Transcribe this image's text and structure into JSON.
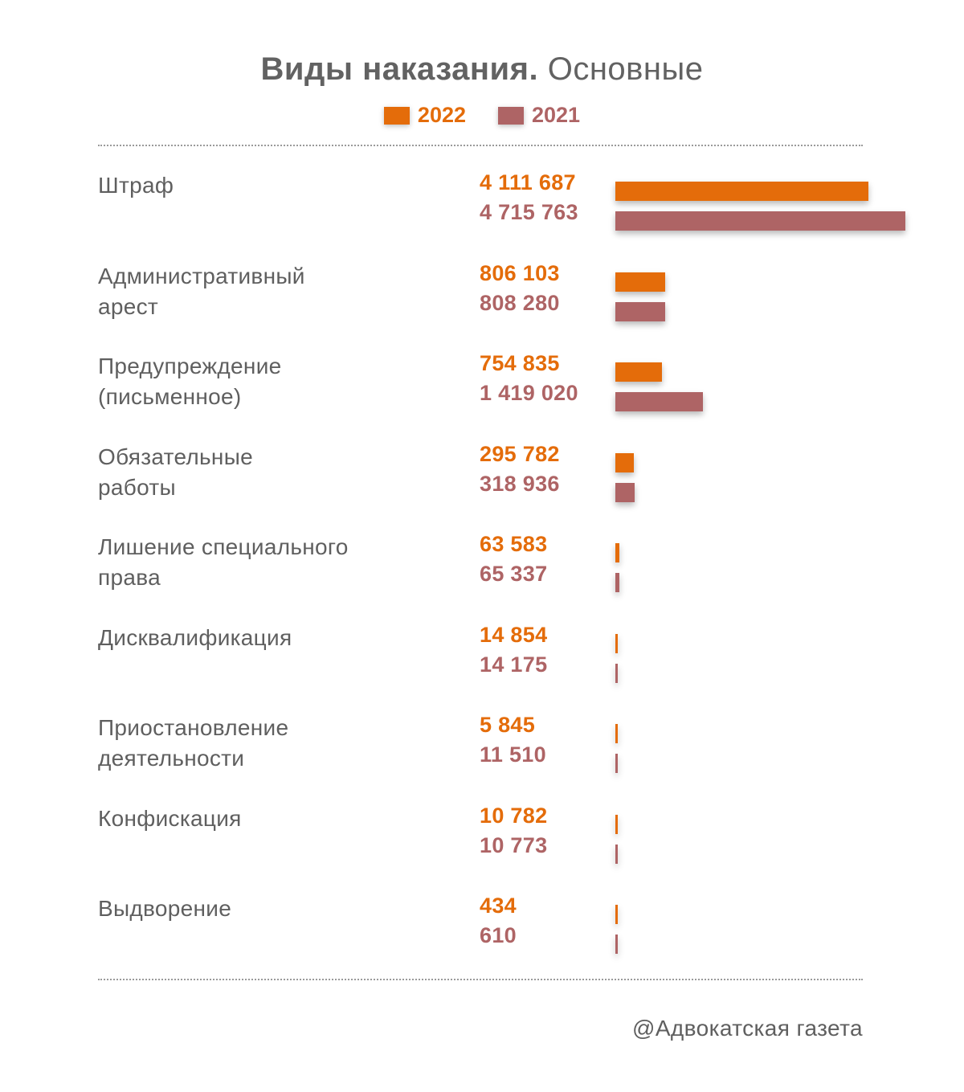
{
  "title": {
    "bold": "Виды наказания.",
    "light": "Основные"
  },
  "colors": {
    "y2022": "#e46c0a",
    "y2021": "#ae6465"
  },
  "legend": [
    {
      "label": "2022",
      "color": "#e46c0a"
    },
    {
      "label": "2021",
      "color": "#ae6465"
    }
  ],
  "source": "@Адвокатская газета",
  "chart_data": {
    "type": "bar",
    "orientation": "horizontal",
    "title": "Виды наказания. Основные",
    "categories": [
      "Штраф",
      "Административный арест",
      "Предупреждение (письменное)",
      "Обязательные работы",
      "Лишение специального права",
      "Дисквалификация",
      "Приостановление деятельности",
      "Конфискация",
      "Выдворение"
    ],
    "category_lines": [
      [
        "Штраф"
      ],
      [
        "Административный",
        "арест"
      ],
      [
        "Предупреждение",
        "(письменное)"
      ],
      [
        "Обязательные",
        "работы"
      ],
      [
        "Лишение специального",
        "права"
      ],
      [
        "Дисквалификация"
      ],
      [
        "Приостановление",
        "деятельности"
      ],
      [
        "Конфискация"
      ],
      [
        "Выдворение"
      ]
    ],
    "series": [
      {
        "name": "2022",
        "values": [
          4111687,
          806103,
          754835,
          295782,
          63583,
          14854,
          5845,
          10782,
          434
        ],
        "labels": [
          "4 111 687",
          "806 103",
          "754 835",
          "295 782",
          "63 583",
          "14 854",
          "5 845",
          "10 782",
          "434"
        ]
      },
      {
        "name": "2021",
        "values": [
          4715763,
          808280,
          1419020,
          318936,
          65337,
          14175,
          11510,
          10773,
          610
        ],
        "labels": [
          "4 715 763",
          "808 280",
          "1 419 020",
          "318 936",
          "65 337",
          "14 175",
          "11 510",
          "10 773",
          "610"
        ]
      }
    ],
    "legend_position": "top-center",
    "grid": false
  }
}
